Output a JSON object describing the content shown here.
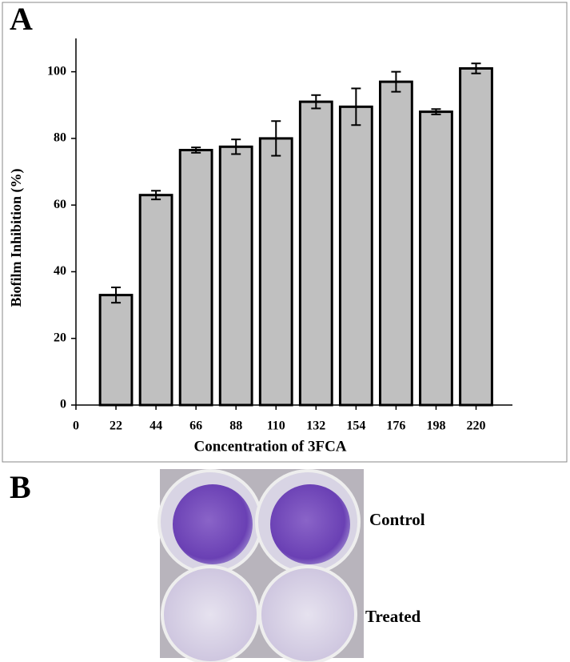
{
  "chart_data": {
    "type": "bar",
    "panel_label": "A",
    "xlabel": "Concentration of 3FCA",
    "ylabel": "Biofilm Inhibition (%)",
    "x": [
      22,
      44,
      66,
      88,
      110,
      132,
      154,
      176,
      198,
      220
    ],
    "values": [
      33,
      63,
      76.5,
      77.5,
      80,
      91,
      89.5,
      97,
      88,
      101
    ],
    "errors": [
      2.3,
      1.3,
      0.8,
      2.2,
      5.2,
      2,
      5.5,
      3,
      0.8,
      1.5
    ],
    "color": "#c0c0c0",
    "xlim": [
      0,
      240
    ],
    "xticks": [
      0,
      22,
      44,
      66,
      88,
      110,
      132,
      154,
      176,
      198,
      220
    ],
    "ylim": [
      0,
      110
    ],
    "yticks": [
      0,
      20,
      40,
      60,
      80,
      100
    ]
  },
  "photo": {
    "panel_label": "B",
    "labels": [
      "Control",
      "Treated"
    ]
  }
}
